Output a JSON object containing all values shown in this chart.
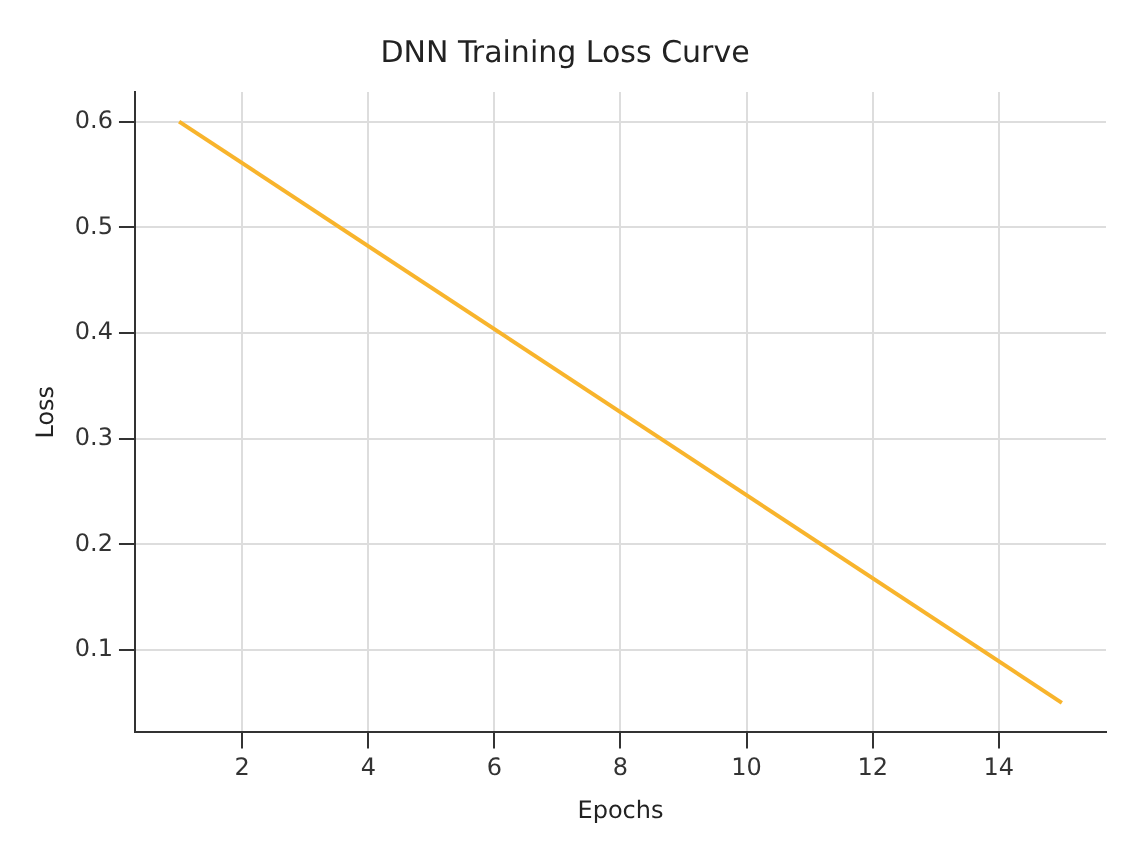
{
  "chart_data": {
    "type": "line",
    "title": "DNN Training Loss Curve",
    "xlabel": "Epochs",
    "ylabel": "Loss",
    "x": [
      1,
      15
    ],
    "series": [
      {
        "color": "#f8b42c",
        "values": [
          0.6,
          0.05
        ]
      }
    ],
    "xlim": [
      0.3,
      15.7
    ],
    "xticks": [
      2,
      4,
      6,
      8,
      10,
      12,
      14
    ],
    "ylim": [
      0.022,
      0.628
    ],
    "yticks": [
      0.1,
      0.2,
      0.3,
      0.4,
      0.5,
      0.6
    ],
    "grid": true,
    "legend": false,
    "marker": "none",
    "line_style": "solid"
  }
}
